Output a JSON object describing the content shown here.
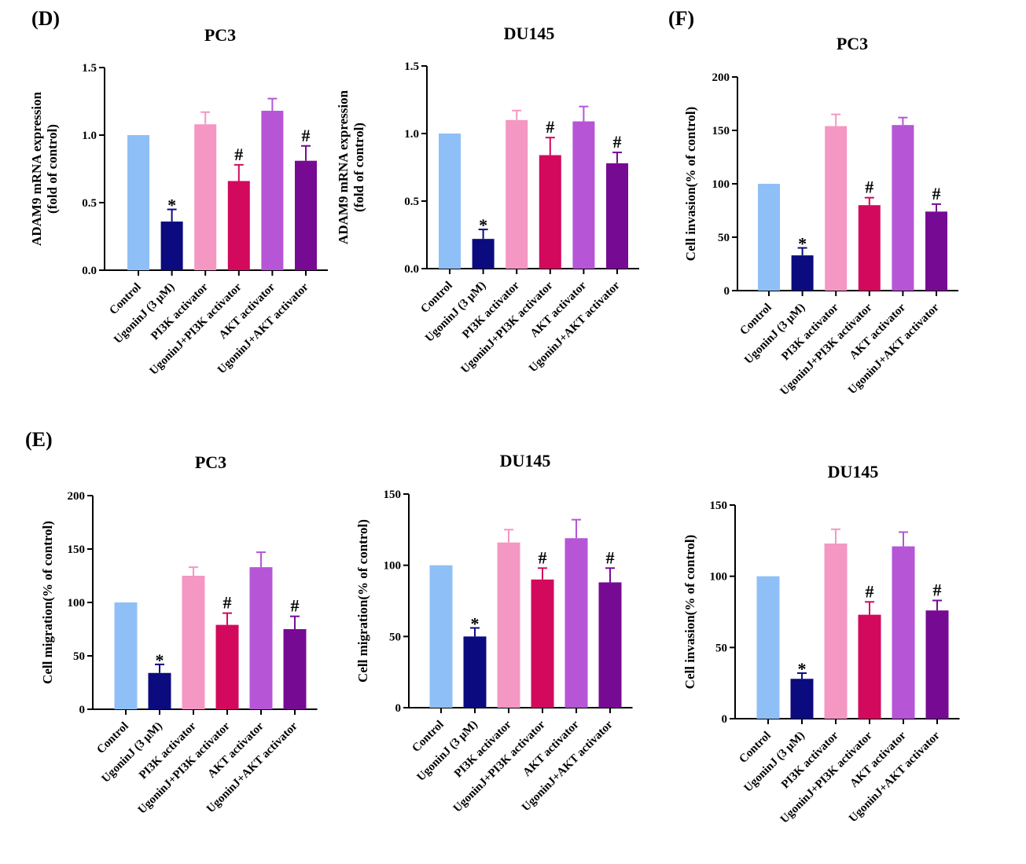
{
  "panel_labels": [
    "(D)",
    "(E)",
    "(F)"
  ],
  "chart_data": [
    {
      "type": "bar",
      "title": "PC3",
      "ylabel_lines": [
        "ADAM9 mRNA expression",
        "(fold of control)"
      ],
      "ylim": [
        0,
        1.5
      ],
      "yticks": [
        "0.0",
        "0.5",
        "1.0",
        "1.5"
      ],
      "categories": [
        "Control",
        "UgoninJ (3 μM)",
        "PI3K activator",
        "UgoninJ+PI3K activator",
        "AKT activator",
        "UgoninJ+AKT activator"
      ],
      "values": [
        1.0,
        0.36,
        1.08,
        0.66,
        1.18,
        0.81
      ],
      "errors": [
        0,
        0.09,
        0.09,
        0.12,
        0.09,
        0.11
      ],
      "annotations": [
        "",
        "*",
        "",
        "#",
        "",
        "#"
      ]
    },
    {
      "type": "bar",
      "title": "DU145",
      "ylabel_lines": [
        "ADAM9 mRNA expression",
        "(fold of control)"
      ],
      "ylim": [
        0,
        1.5
      ],
      "yticks": [
        "0.0",
        "0.5",
        "1.0",
        "1.5"
      ],
      "categories": [
        "Control",
        "UgoninJ (3 μM)",
        "PI3K activator",
        "UgoninJ+PI3K activator",
        "AKT activator",
        "UgoninJ+AKT activator"
      ],
      "values": [
        1.0,
        0.22,
        1.1,
        0.84,
        1.09,
        0.78
      ],
      "errors": [
        0,
        0.07,
        0.07,
        0.13,
        0.11,
        0.08
      ],
      "annotations": [
        "",
        "*",
        "",
        "#",
        "",
        "#"
      ]
    },
    {
      "type": "bar",
      "title": "PC3",
      "ylabel_lines": [
        "Cell invasion(% of control)"
      ],
      "ylim": [
        0,
        200
      ],
      "yticks": [
        "0",
        "50",
        "100",
        "150",
        "200"
      ],
      "categories": [
        "Control",
        "UgoninJ (3 μM)",
        "PI3K activator",
        "UgoninJ+PI3K activator",
        "AKT activator",
        "UgoninJ+AKT activator"
      ],
      "values": [
        100,
        33,
        154,
        80,
        155,
        74
      ],
      "errors": [
        0,
        7,
        11,
        7,
        7,
        7
      ],
      "annotations": [
        "",
        "*",
        "",
        "#",
        "",
        "#"
      ]
    },
    {
      "type": "bar",
      "title": "PC3",
      "ylabel_lines": [
        "Cell migration(% of control)"
      ],
      "ylim": [
        0,
        200
      ],
      "yticks": [
        "0",
        "50",
        "100",
        "150",
        "200"
      ],
      "categories": [
        "Control",
        "UgoninJ (3 μM)",
        "PI3K activator",
        "UgoninJ+PI3K activator",
        "AKT activator",
        "UgoninJ+AKT activator"
      ],
      "values": [
        100,
        34,
        125,
        79,
        133,
        75
      ],
      "errors": [
        0,
        8,
        8,
        11,
        14,
        12
      ],
      "annotations": [
        "",
        "*",
        "",
        "#",
        "",
        "#"
      ]
    },
    {
      "type": "bar",
      "title": "DU145",
      "ylabel_lines": [
        "Cell migration(% of control)"
      ],
      "ylim": [
        0,
        150
      ],
      "yticks": [
        "0",
        "50",
        "100",
        "150"
      ],
      "categories": [
        "Control",
        "UgoninJ (3 μM)",
        "PI3K activator",
        "UgoninJ+PI3K activator",
        "AKT activator",
        "UgoninJ+AKT activator"
      ],
      "values": [
        100,
        50,
        116,
        90,
        119,
        88
      ],
      "errors": [
        0,
        6,
        9,
        8,
        13,
        10
      ],
      "annotations": [
        "",
        "*",
        "",
        "#",
        "",
        "#"
      ]
    },
    {
      "type": "bar",
      "title": "DU145",
      "ylabel_lines": [
        "Cell invasion(% of control)"
      ],
      "ylim": [
        0,
        150
      ],
      "yticks": [
        "0",
        "50",
        "100",
        "150"
      ],
      "categories": [
        "Control",
        "UgoninJ (3 μM)",
        "PI3K activator",
        "UgoninJ+PI3K activator",
        "AKT activator",
        "UgoninJ+AKT activator"
      ],
      "values": [
        100,
        28,
        123,
        73,
        121,
        76
      ],
      "errors": [
        0,
        4,
        10,
        9,
        10,
        7
      ],
      "annotations": [
        "",
        "*",
        "",
        "#",
        "",
        "#"
      ]
    }
  ],
  "colors": {
    "bars": [
      "#8fbff7",
      "#0b0b7f",
      "#f497c2",
      "#d2095d",
      "#b655d6",
      "#770a93"
    ],
    "axis": "#000000"
  }
}
